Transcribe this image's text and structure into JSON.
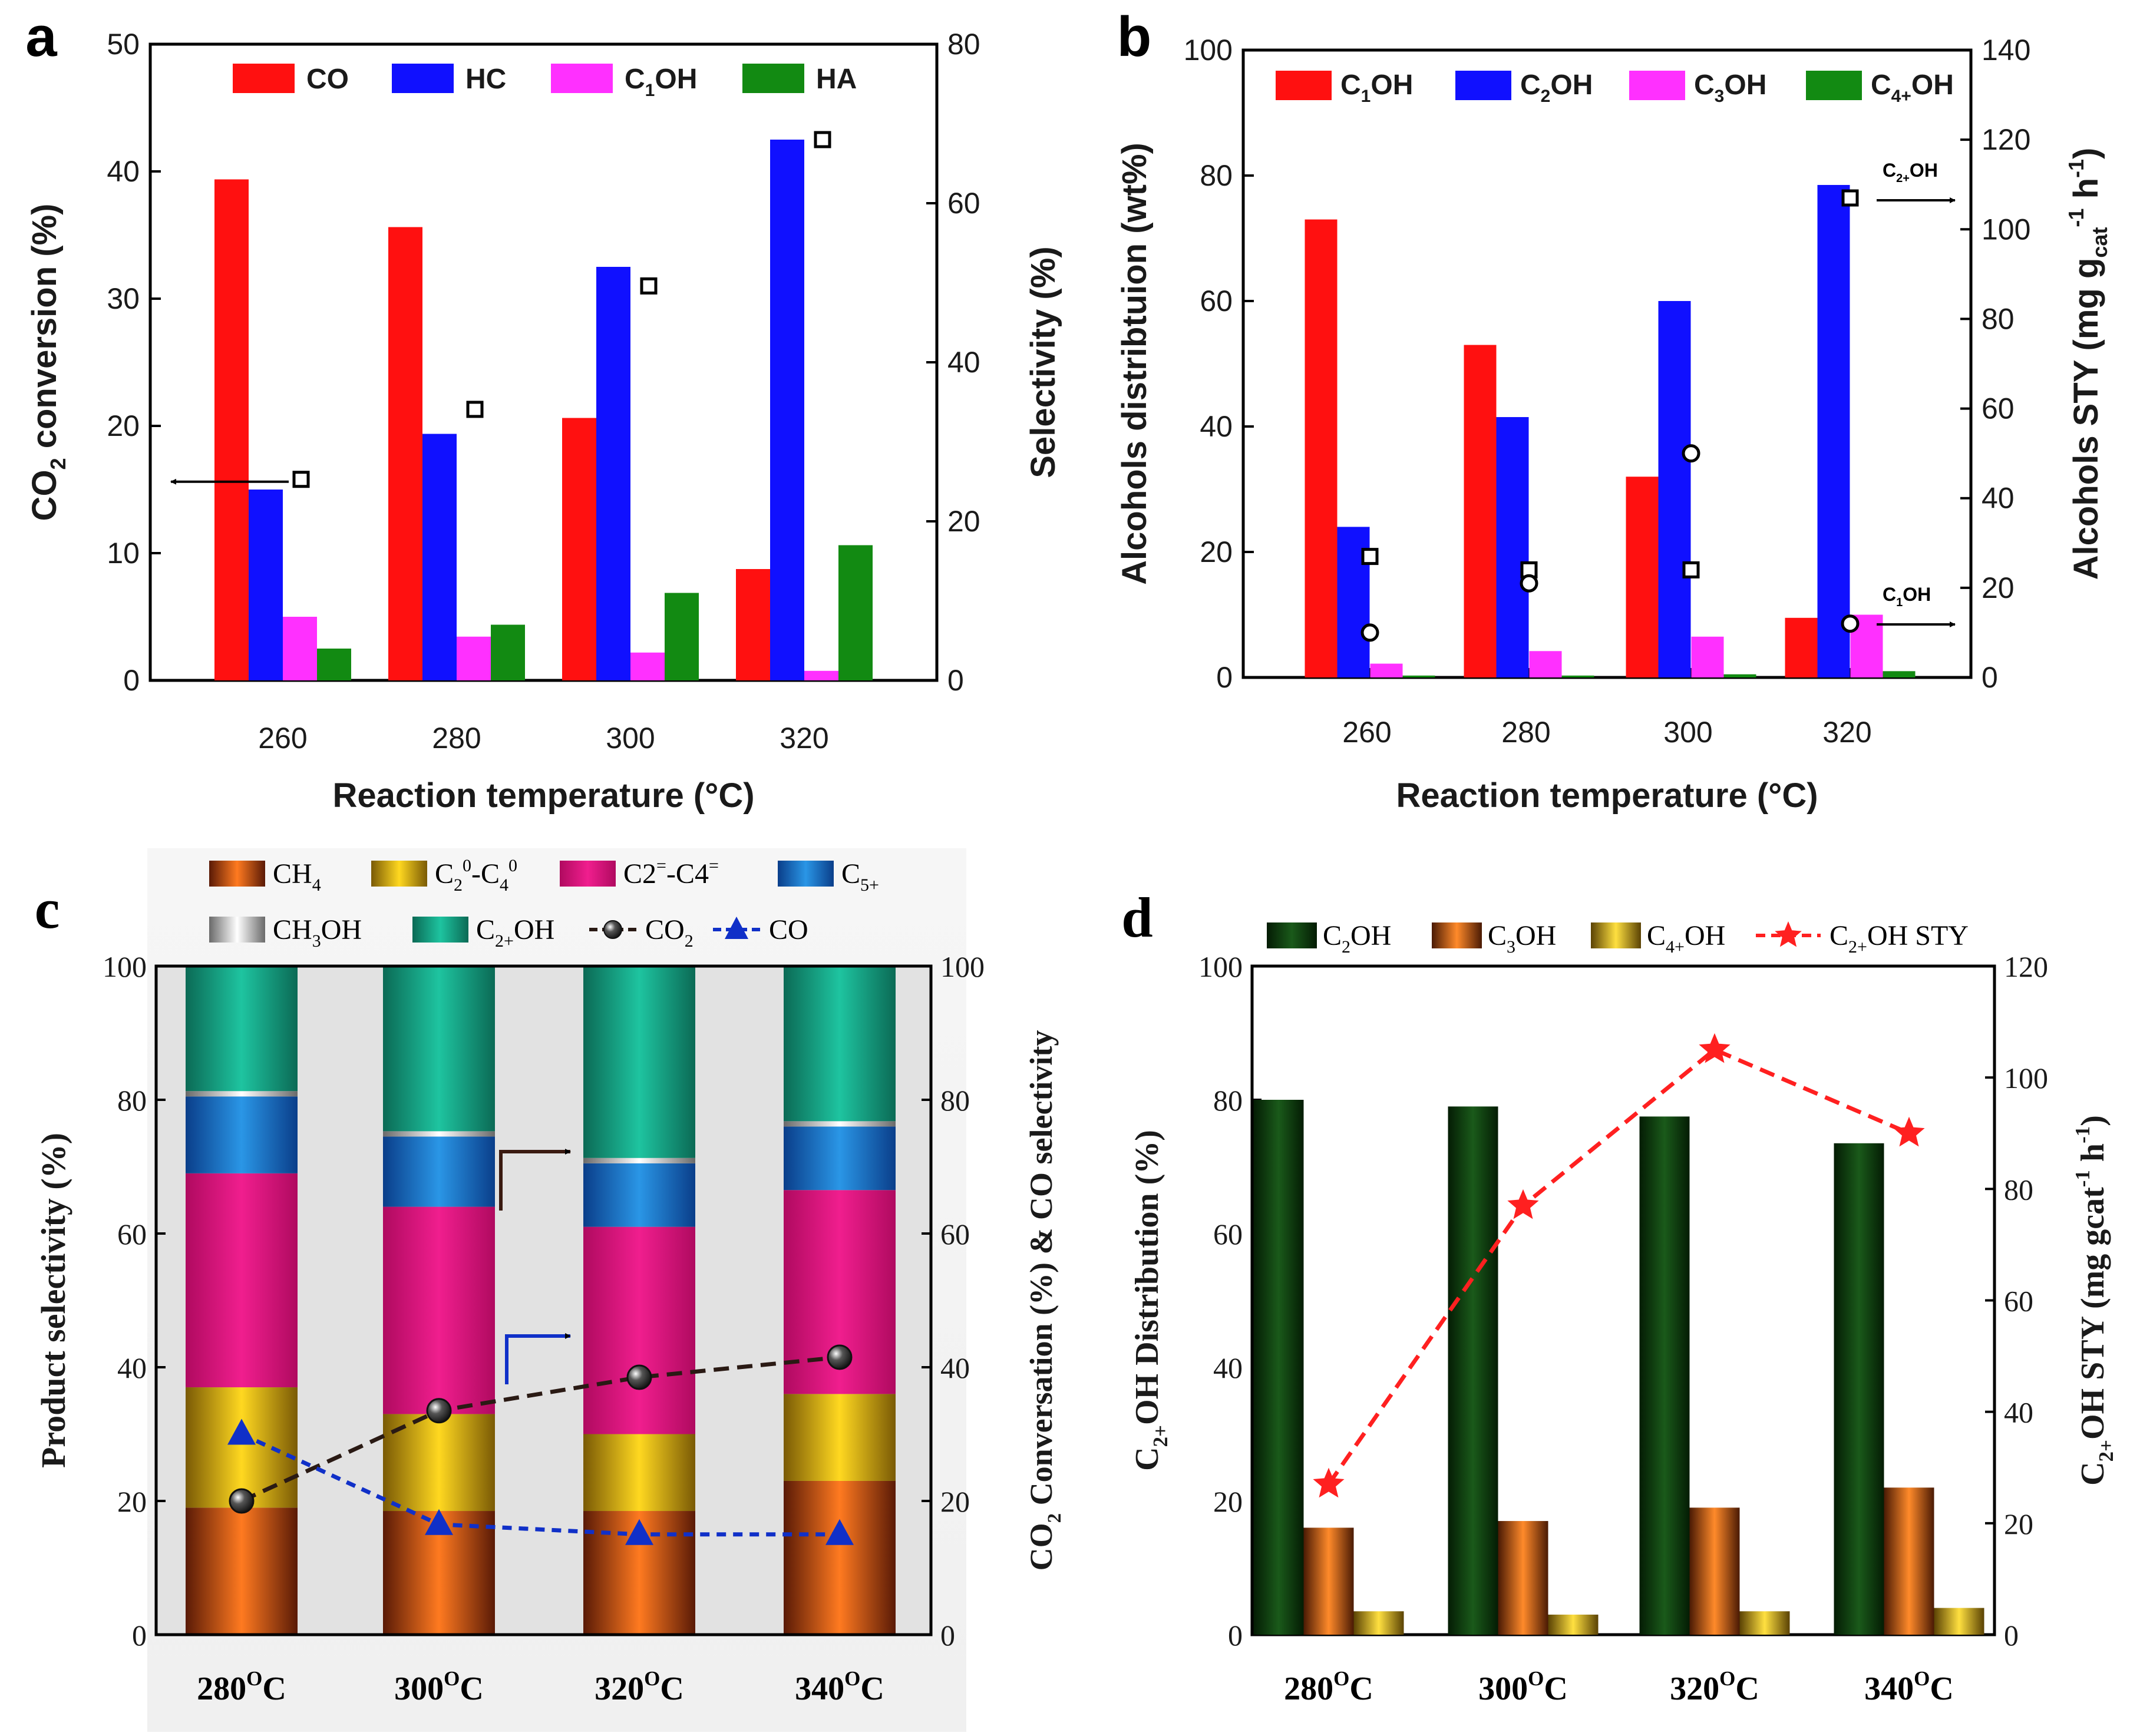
{
  "colors": {
    "co": "#ff1010",
    "hc": "#1010ff",
    "c1oh": "#ff30ff",
    "ha": "#128a12",
    "c2oh_dark": "#0b3d0b",
    "c3oh": "#e86a10",
    "c4oh": "#e8c010",
    "ch4": "#e8601a",
    "c2c4_sat": "#f0c818",
    "olefin": "#e0107e",
    "c5": "#1e78c8",
    "ch3oh": "#e6e6e6",
    "c2plus": "#14a084",
    "co2_marker": "#3a3a3a",
    "co_line": "#1030c8",
    "sty_line": "#ff2020"
  },
  "chart_data": [
    {
      "panel": "a",
      "type": "bar",
      "xlabel": "Reaction temperature (°C)",
      "ylabel": "CO2 conversion (%)",
      "ylabel_parts": {
        "base": "CO",
        "sub": "2",
        "rest": " conversion (%)"
      },
      "y2label": "Selectivity (%)",
      "ylim": [
        0,
        50
      ],
      "y2lim": [
        0,
        80
      ],
      "yticks": [
        0,
        10,
        20,
        30,
        40,
        50
      ],
      "y2ticks": [
        0,
        20,
        40,
        60,
        80
      ],
      "categories": [
        "260",
        "280",
        "300",
        "320"
      ],
      "series": [
        {
          "name": "CO",
          "axis": "right",
          "values": [
            63,
            57,
            33,
            14
          ]
        },
        {
          "name": "HC",
          "axis": "right",
          "values": [
            24,
            31,
            52,
            68
          ]
        },
        {
          "name": "C1OH",
          "axis": "right",
          "values": [
            8,
            5.5,
            3.5,
            1.2
          ]
        },
        {
          "name": "HA",
          "axis": "right",
          "values": [
            4,
            7,
            11,
            17
          ]
        }
      ],
      "legend": [
        {
          "key": "co",
          "base": "CO",
          "sub": "",
          "rest": ""
        },
        {
          "key": "hc",
          "base": "HC",
          "sub": "",
          "rest": ""
        },
        {
          "key": "c1oh",
          "base": "C",
          "sub": "1",
          "rest": "OH"
        },
        {
          "key": "ha",
          "base": "HA",
          "sub": "",
          "rest": ""
        }
      ],
      "conversion": {
        "name": "CO2 conversion",
        "axis": "left",
        "values": [
          15.8,
          21.3,
          31.0,
          42.5
        ]
      }
    },
    {
      "panel": "b",
      "type": "bar",
      "xlabel": "Reaction temperature (°C)",
      "ylabel": "Alcohols distribtuion (wt%)",
      "y2label": "Alcohols STY (mg gcat-1 h-1)",
      "ylim": [
        0,
        100
      ],
      "y2lim": [
        0,
        140
      ],
      "yticks": [
        0,
        20,
        40,
        60,
        80,
        100
      ],
      "y2ticks": [
        0,
        20,
        40,
        60,
        80,
        100,
        120,
        140
      ],
      "categories": [
        "260",
        "280",
        "300",
        "320"
      ],
      "series": [
        {
          "name": "C1OH",
          "axis": "left",
          "values": [
            73,
            53,
            32,
            9.5
          ]
        },
        {
          "name": "C2OH",
          "axis": "left",
          "values": [
            24,
            41.5,
            60,
            78.5
          ]
        },
        {
          "name": "C3OH",
          "axis": "left",
          "values": [
            2.2,
            4.2,
            6.5,
            10
          ]
        },
        {
          "name": "C4+OH",
          "axis": "left",
          "values": [
            0.3,
            0.3,
            0.5,
            1.0
          ]
        }
      ],
      "legend": [
        {
          "key": "co",
          "base": "C",
          "sub": "1",
          "rest": "OH"
        },
        {
          "key": "hc",
          "base": "C",
          "sub": "2",
          "rest": "OH"
        },
        {
          "key": "c1oh",
          "base": "C",
          "sub": "3",
          "rest": "OH"
        },
        {
          "key": "ha",
          "base": "C",
          "sub": "4+",
          "rest": "OH"
        }
      ],
      "sty_c2oh": {
        "name": "C2+OH STY",
        "axis": "right",
        "values": [
          27,
          24,
          24,
          107
        ]
      },
      "sty_c1oh": {
        "name": "C1OH STY",
        "axis": "right",
        "values": [
          10,
          21,
          50,
          12
        ]
      },
      "annotations": [
        {
          "base": "C",
          "sub": "2+",
          "rest": "OH"
        },
        {
          "base": "C",
          "sub": "1",
          "rest": "OH"
        }
      ]
    },
    {
      "panel": "c",
      "type": "stacked_bar",
      "ylabel": "Product selectivity (%)",
      "y2label": "CO2 Conversation (%) & CO selectivity",
      "y2label_parts": {
        "base": "CO",
        "sub": "2",
        "rest": " Conversation (%) & CO selectivity"
      },
      "ylim": [
        0,
        100
      ],
      "y2lim": [
        0,
        100
      ],
      "yticks": [
        0,
        20,
        40,
        60,
        80,
        100
      ],
      "categories": [
        "280°C",
        "300°C",
        "320°C",
        "340°C"
      ],
      "category_labels": [
        {
          "num": "280",
          "sup": "O",
          "unit": "C"
        },
        {
          "num": "300",
          "sup": "O",
          "unit": "C"
        },
        {
          "num": "320",
          "sup": "O",
          "unit": "C"
        },
        {
          "num": "340",
          "sup": "O",
          "unit": "C"
        }
      ],
      "series": [
        {
          "name": "CH4",
          "values": [
            19,
            18.5,
            18.5,
            23
          ]
        },
        {
          "name": "C2-C4 paraffins",
          "values": [
            18,
            14.5,
            11.5,
            13
          ]
        },
        {
          "name": "C2=-C4= olefins",
          "values": [
            32,
            31,
            31,
            30.5
          ]
        },
        {
          "name": "C5+",
          "values": [
            11.5,
            10.5,
            9.5,
            9.5
          ]
        },
        {
          "name": "CH3OH",
          "values": [
            0.8,
            0.8,
            0.8,
            0.8
          ]
        },
        {
          "name": "C2+OH",
          "values": [
            18.7,
            24.7,
            28.7,
            23.2
          ]
        }
      ],
      "legend": [
        {
          "key": "ch4",
          "base": "CH",
          "sub": "4",
          "rest": ""
        },
        {
          "key": "c2c4_sat",
          "base": "C",
          "sub": "2",
          "sup": "0",
          "rest": "-C",
          "sub2": "4",
          "sup2": "0"
        },
        {
          "key": "olefin",
          "base": "C2",
          "sup": "=",
          "rest": "-C4",
          "sup2": "="
        },
        {
          "key": "c5",
          "base": "C",
          "sub": "5+",
          "rest": ""
        },
        {
          "key": "ch3oh",
          "base": "CH",
          "sub": "3",
          "rest": "OH"
        },
        {
          "key": "c2plus",
          "base": "C",
          "sub": "2+",
          "rest": "OH"
        },
        {
          "key": "co2_marker",
          "base": "CO",
          "sub": "2",
          "rest": ""
        },
        {
          "key": "co_line",
          "base": "CO",
          "sub": "",
          "rest": ""
        }
      ],
      "co2_conversion": {
        "name": "CO2",
        "values": [
          20,
          33.5,
          38.5,
          41.5
        ]
      },
      "co_selectivity": {
        "name": "CO",
        "values": [
          30,
          16.5,
          15,
          15
        ]
      }
    },
    {
      "panel": "d",
      "type": "bar",
      "ylabel": "C2+OH Distribution (%)",
      "ylabel_parts": {
        "base": "C",
        "sub": "2+",
        "rest": "OH  Distribution (%)"
      },
      "y2label": "C2+OH STY (mg gcat-1 h-1)",
      "y2label_parts": {
        "base": "C",
        "sub": "2+",
        "rest": "OH  STY (mg gcat",
        "sup": "-1",
        "rest2": " h",
        "sup2": "-1",
        "rest3": ")"
      },
      "ylim": [
        0,
        100
      ],
      "y2lim": [
        0,
        120
      ],
      "yticks": [
        0,
        20,
        40,
        60,
        80,
        100
      ],
      "y2ticks": [
        0,
        20,
        40,
        60,
        80,
        100,
        120
      ],
      "categories": [
        "280°C",
        "300°C",
        "320°C",
        "340°C"
      ],
      "category_labels": [
        {
          "num": "280",
          "sup": "O",
          "unit": "C"
        },
        {
          "num": "300",
          "sup": "O",
          "unit": "C"
        },
        {
          "num": "320",
          "sup": "O",
          "unit": "C"
        },
        {
          "num": "340",
          "sup": "O",
          "unit": "C"
        }
      ],
      "series": [
        {
          "name": "C2OH",
          "values": [
            80,
            79,
            77.5,
            73.5
          ]
        },
        {
          "name": "C3OH",
          "values": [
            16,
            17,
            19,
            22
          ]
        },
        {
          "name": "C4+OH",
          "values": [
            3.5,
            3,
            3.5,
            4
          ]
        }
      ],
      "legend": [
        {
          "key": "c2oh_dark",
          "base": "C",
          "sub": "2",
          "rest": "OH"
        },
        {
          "key": "c3oh",
          "base": "C",
          "sub": "3",
          "rest": "OH"
        },
        {
          "key": "c4oh",
          "base": "C",
          "sub": "4+",
          "rest": "OH"
        },
        {
          "key": "sty_line",
          "base": "C",
          "sub": "2+",
          "rest": "OH STY"
        }
      ],
      "sty": {
        "name": "C2+OH STY",
        "axis": "right",
        "values": [
          27,
          77,
          105,
          90
        ]
      }
    }
  ]
}
